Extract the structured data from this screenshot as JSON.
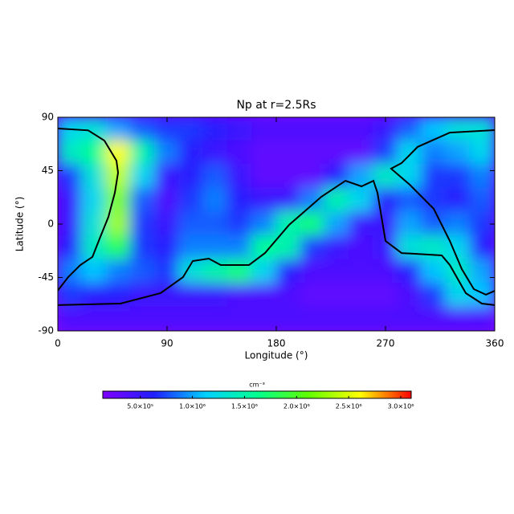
{
  "chart_data": {
    "type": "heatmap",
    "title": "Np at r=2.5Rs",
    "x_label": "Longitude (°)",
    "y_label": "Latitude (°)",
    "xlim": [
      0,
      360
    ],
    "xticks": [
      0,
      90,
      180,
      270,
      360
    ],
    "ylim": [
      -90,
      90
    ],
    "yticks": [
      -90,
      -45,
      0,
      45,
      90
    ],
    "x": [
      10,
      30,
      50,
      70,
      90,
      110,
      130,
      150,
      170,
      190,
      210,
      230,
      250,
      270,
      290,
      310,
      330,
      350
    ],
    "y": [
      80,
      60,
      40,
      20,
      0,
      -20,
      -40,
      -60,
      -80
    ],
    "z": [
      [
        1200000,
        1300000,
        1000000,
        800000,
        700000,
        700000,
        600000,
        500000,
        400000,
        400000,
        400000,
        400000,
        400000,
        500000,
        800000,
        1100000,
        1300000,
        1300000
      ],
      [
        1400000,
        1600000,
        2600000,
        1500000,
        900000,
        600000,
        500000,
        400000,
        300000,
        300000,
        300000,
        300000,
        300000,
        700000,
        1200000,
        900000,
        1000000,
        1200000
      ],
      [
        700000,
        1300000,
        2400000,
        1200000,
        500000,
        600000,
        800000,
        500000,
        300000,
        300000,
        300000,
        600000,
        1000000,
        1400000,
        1200000,
        700000,
        700000,
        900000
      ],
      [
        500000,
        1200000,
        2200000,
        800000,
        400000,
        700000,
        900000,
        600000,
        500000,
        500000,
        900000,
        1500000,
        1200000,
        600000,
        800000,
        700000,
        600000,
        800000
      ],
      [
        500000,
        1300000,
        2300000,
        700000,
        500000,
        800000,
        800000,
        700000,
        900000,
        1500000,
        1700000,
        1000000,
        500000,
        500000,
        1000000,
        800000,
        900000,
        700000
      ],
      [
        600000,
        1400000,
        1800000,
        700000,
        600000,
        900000,
        900000,
        900000,
        1600000,
        1500000,
        700000,
        500000,
        400000,
        500000,
        1300000,
        1400000,
        1200000,
        600000
      ],
      [
        900000,
        1100000,
        900000,
        800000,
        700000,
        1300000,
        1500000,
        1700000,
        1200000,
        600000,
        400000,
        400000,
        400000,
        400000,
        600000,
        1100000,
        1400000,
        1000000
      ],
      [
        700000,
        600000,
        600000,
        500000,
        500000,
        500000,
        500000,
        400000,
        400000,
        400000,
        300000,
        300000,
        300000,
        300000,
        400000,
        700000,
        1200000,
        1100000
      ],
      [
        400000,
        400000,
        400000,
        400000,
        400000,
        400000,
        400000,
        400000,
        400000,
        400000,
        400000,
        400000,
        400000,
        400000,
        400000,
        400000,
        400000,
        400000
      ]
    ],
    "colormap": [
      "#8000ff",
      "#2020ff",
      "#00d0ff",
      "#00ff90",
      "#60ff00",
      "#ffff00",
      "#ff0000"
    ],
    "clim": [
      140000,
      3100000
    ],
    "colorbar_label": "cm⁻³",
    "cticks": [
      {
        "value": 500000,
        "label": "5.0×10⁵"
      },
      {
        "value": 1000000,
        "label": "1.0×10⁶"
      },
      {
        "value": 1500000,
        "label": "1.5×10⁶"
      },
      {
        "value": 2000000,
        "label": "2.0×10⁶"
      },
      {
        "value": 2500000,
        "label": "2.5×10⁶"
      },
      {
        "value": 3000000,
        "label": "3.0×10⁶"
      }
    ],
    "line_color": "#000000",
    "lines": [
      {
        "x": [
          0,
          25,
          38.4,
          48.3,
          49.6,
          47,
          41.7,
          35,
          28.5,
          18.5,
          8.6,
          0
        ],
        "y": [
          80.5,
          79,
          70.3,
          53.4,
          43.3,
          26.4,
          6.1,
          -10.8,
          -27.7,
          -34.5,
          -44.6,
          -56
        ]
      },
      {
        "x": [
          360,
          323,
          296.5,
          283.3,
          274.6,
          289.9,
          309.7,
          323,
          332.9,
          342.8,
          352.7,
          360
        ],
        "y": [
          79.2,
          77.1,
          65,
          51.4,
          46.7,
          33.2,
          12.9,
          -14.2,
          -37.9,
          -54.8,
          -59.5,
          -56.2
        ]
      },
      {
        "x": [
          0,
          51.6,
          84.7,
          103.2,
          111.2,
          124.4,
          134.3,
          157.5,
          170.7,
          190.6,
          217.1,
          237,
          250.2,
          260.1,
          263.4,
          270,
          283.3,
          316.3,
          323,
          336.2,
          349.4,
          360
        ],
        "y": [
          -68.3,
          -67,
          -58.2,
          -44.7,
          -31.1,
          -29.1,
          -34.5,
          -34.5,
          -24.4,
          -0.7,
          23,
          36.5,
          31.8,
          36.5,
          26.4,
          -14.2,
          -24.4,
          -26.4,
          -34.5,
          -58.2,
          -67,
          -68.3
        ]
      }
    ]
  }
}
